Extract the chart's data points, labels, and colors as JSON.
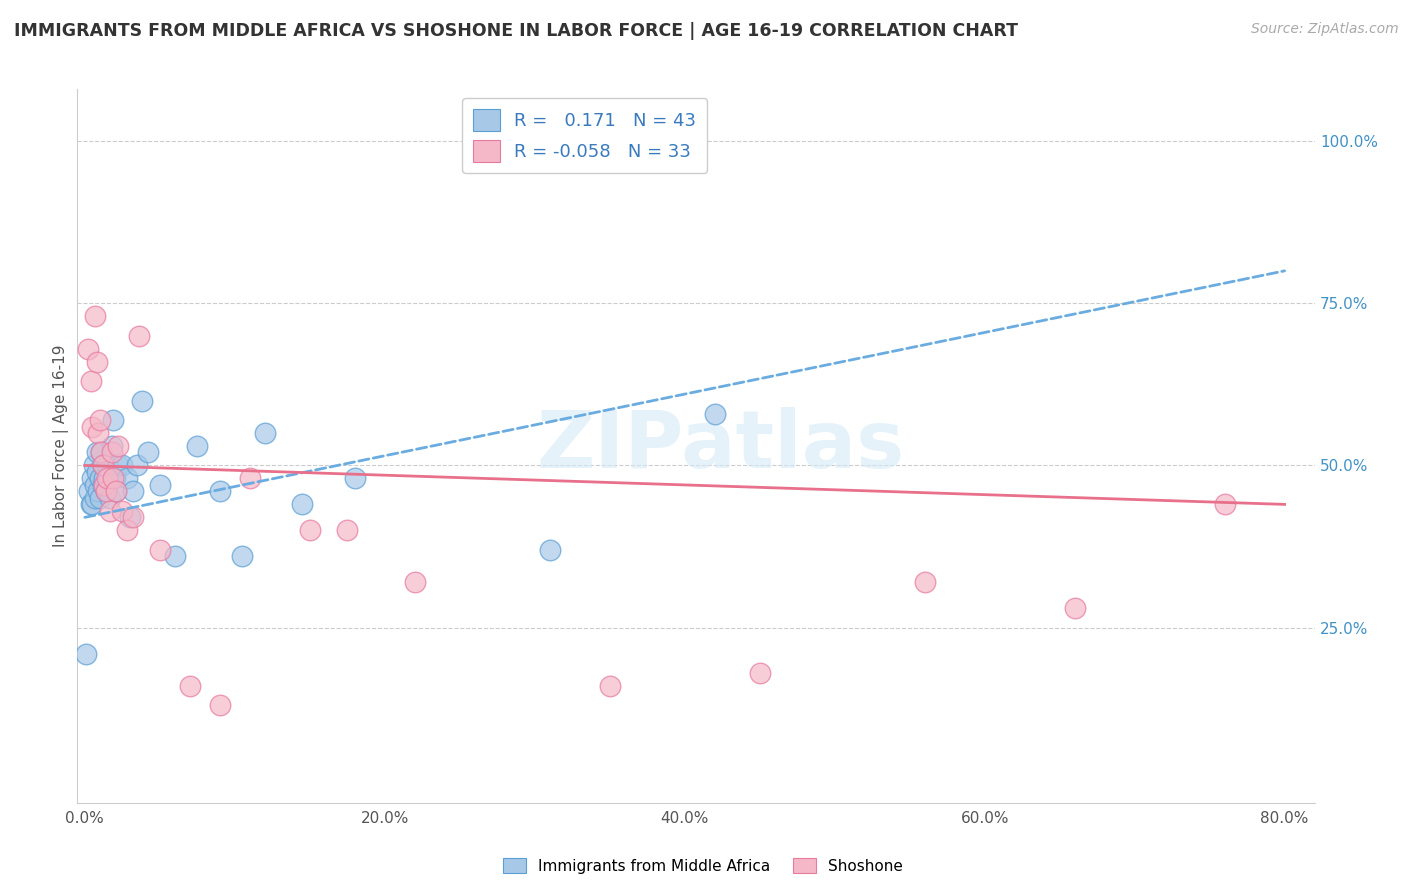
{
  "title": "IMMIGRANTS FROM MIDDLE AFRICA VS SHOSHONE IN LABOR FORCE | AGE 16-19 CORRELATION CHART",
  "source": "Source: ZipAtlas.com",
  "ylabel": "In Labor Force | Age 16-19",
  "xlim": [
    -0.005,
    0.82
  ],
  "ylim": [
    -0.02,
    1.08
  ],
  "xtick_values": [
    0.0,
    0.2,
    0.4,
    0.6,
    0.8
  ],
  "xtick_labels": [
    "0.0%",
    "20.0%",
    "40.0%",
    "60.0%",
    "80.0%"
  ],
  "ytick_values_right": [
    1.0,
    0.75,
    0.5,
    0.25
  ],
  "ytick_labels_right": [
    "100.0%",
    "75.0%",
    "50.0%",
    "25.0%"
  ],
  "color_blue": "#a8c8e8",
  "color_pink": "#f4b8c8",
  "color_blue_edge": "#5a9fd4",
  "color_pink_edge": "#e87aa0",
  "color_blue_line": "#6aace0",
  "color_pink_line": "#e8708a",
  "blue_scatter_x": [
    0.001,
    0.003,
    0.004,
    0.005,
    0.005,
    0.006,
    0.007,
    0.007,
    0.008,
    0.008,
    0.009,
    0.01,
    0.01,
    0.011,
    0.012,
    0.012,
    0.013,
    0.014,
    0.015,
    0.016,
    0.017,
    0.018,
    0.019,
    0.02,
    0.021,
    0.022,
    0.025,
    0.028,
    0.03,
    0.032,
    0.035,
    0.038,
    0.042,
    0.05,
    0.06,
    0.075,
    0.09,
    0.105,
    0.12,
    0.145,
    0.18,
    0.31,
    0.42
  ],
  "blue_scatter_y": [
    0.21,
    0.46,
    0.44,
    0.48,
    0.44,
    0.5,
    0.47,
    0.45,
    0.52,
    0.49,
    0.46,
    0.48,
    0.45,
    0.52,
    0.5,
    0.47,
    0.48,
    0.46,
    0.5,
    0.48,
    0.45,
    0.53,
    0.57,
    0.48,
    0.46,
    0.5,
    0.5,
    0.48,
    0.42,
    0.46,
    0.5,
    0.6,
    0.52,
    0.47,
    0.36,
    0.53,
    0.46,
    0.36,
    0.55,
    0.44,
    0.48,
    0.37,
    0.58
  ],
  "pink_scatter_x": [
    0.002,
    0.004,
    0.005,
    0.007,
    0.008,
    0.009,
    0.01,
    0.011,
    0.012,
    0.013,
    0.014,
    0.015,
    0.017,
    0.018,
    0.019,
    0.021,
    0.022,
    0.025,
    0.028,
    0.032,
    0.036,
    0.05,
    0.07,
    0.09,
    0.11,
    0.15,
    0.175,
    0.22,
    0.35,
    0.45,
    0.56,
    0.66,
    0.76
  ],
  "pink_scatter_y": [
    0.68,
    0.63,
    0.56,
    0.73,
    0.66,
    0.55,
    0.57,
    0.52,
    0.5,
    0.47,
    0.46,
    0.48,
    0.43,
    0.52,
    0.48,
    0.46,
    0.53,
    0.43,
    0.4,
    0.42,
    0.7,
    0.37,
    0.16,
    0.13,
    0.48,
    0.4,
    0.4,
    0.32,
    0.16,
    0.18,
    0.32,
    0.28,
    0.44
  ],
  "blue_trend_x": [
    0.0,
    0.8
  ],
  "blue_trend_y": [
    0.42,
    0.8
  ],
  "pink_trend_x": [
    0.0,
    0.8
  ],
  "pink_trend_y": [
    0.5,
    0.44
  ],
  "watermark_text": "ZIPatlas",
  "legend_items": [
    {
      "label": "R =   0.171   N = 43",
      "fc": "#a8c8e8",
      "ec": "#5a9fd4"
    },
    {
      "label": "R = -0.058   N = 33",
      "fc": "#f4b8c8",
      "ec": "#e87aa0"
    }
  ],
  "bottom_legend": [
    {
      "label": "Immigrants from Middle Africa",
      "fc": "#a8c8e8",
      "ec": "#5a9fd4"
    },
    {
      "label": "Shoshone",
      "fc": "#f4b8c8",
      "ec": "#e87aa0"
    }
  ]
}
